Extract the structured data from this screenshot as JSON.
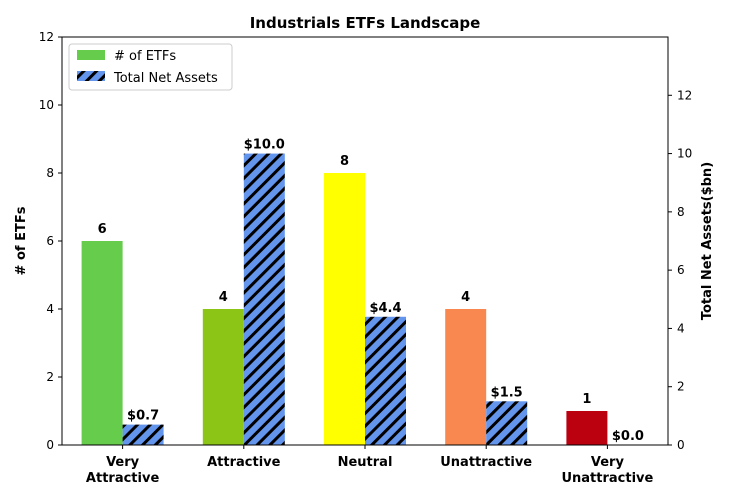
{
  "chart_data": {
    "type": "bar",
    "title": "Industrials ETFs Landscape",
    "categories": [
      "Very\nAttractive",
      "Attractive",
      "Neutral",
      "Unattractive",
      "Very\nUnattractive"
    ],
    "series": [
      {
        "name": "# of ETFs",
        "axis": "left",
        "values": [
          6,
          4,
          8,
          4,
          1
        ],
        "value_labels": [
          "6",
          "4",
          "8",
          "4",
          "1"
        ],
        "colors": [
          "#66cc4c",
          "#8cc516",
          "#ffff00",
          "#f98850",
          "#bb0010"
        ]
      },
      {
        "name": "Total Net Assets",
        "axis": "right",
        "values": [
          0.7,
          10.0,
          4.4,
          1.5,
          0.0
        ],
        "value_labels": [
          "$0.7",
          "$10.0",
          "$4.4",
          "$1.5",
          "$0.0"
        ],
        "color": "#6495ed",
        "hatch": "diagonal"
      }
    ],
    "ylabel": "# of ETFs",
    "ylabel_right": "Total Net Assets($bn)",
    "ylim": [
      0,
      12
    ],
    "ylim_right": [
      0,
      14
    ],
    "yticks": [
      0,
      2,
      4,
      6,
      8,
      10,
      12
    ],
    "yticks_right": [
      0,
      2,
      4,
      6,
      8,
      10,
      12
    ],
    "grid": false,
    "legend_position": "top-left"
  }
}
